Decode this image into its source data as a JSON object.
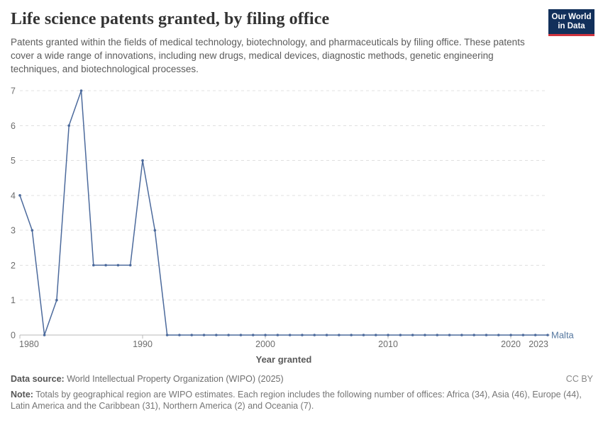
{
  "header": {
    "title": "Life science patents granted, by filing office",
    "subtitle": "Patents granted within the fields of medical technology, biotechnology, and pharmaceuticals by filing office. These patents cover a wide range of innovations, including new drugs, medical devices, diagnostic methods, genetic engineering techniques, and biotechnological processes.",
    "logo": {
      "line1": "Our World",
      "line2": "in Data"
    }
  },
  "chart_data": {
    "type": "line",
    "title": "Life science patents granted, by filing office",
    "xlabel": "Year granted",
    "ylabel": "",
    "x_range": [
      1980,
      2023
    ],
    "ylim": [
      0,
      7
    ],
    "yticks": [
      0,
      1,
      2,
      3,
      4,
      5,
      6,
      7
    ],
    "xticks": [
      1980,
      1990,
      2000,
      2010,
      2020,
      2023
    ],
    "grid": "horizontal-dashed",
    "legend_position": "end-of-line-label",
    "colors": {
      "line": "#4C6A9C",
      "gridline": "#e0e0e0",
      "axis_line": "#b8b8b8",
      "tick_text": "#6d6d6d",
      "axis_title": "#5a5a5a"
    },
    "series": [
      {
        "name": "Malta",
        "color": "#4C6A9C",
        "years": [
          1980,
          1981,
          1982,
          1983,
          1984,
          1985,
          1986,
          1987,
          1988,
          1989,
          1990,
          1991,
          1992,
          1993,
          1994,
          1995,
          1996,
          1997,
          1998,
          1999,
          2000,
          2001,
          2002,
          2003,
          2004,
          2005,
          2006,
          2007,
          2008,
          2009,
          2010,
          2011,
          2012,
          2013,
          2014,
          2015,
          2016,
          2017,
          2018,
          2019,
          2020,
          2021,
          2022,
          2023
        ],
        "values": [
          4,
          3,
          0,
          1,
          6,
          7,
          2,
          2,
          2,
          2,
          5,
          3,
          0,
          0,
          0,
          0,
          0,
          0,
          0,
          0,
          0,
          0,
          0,
          0,
          0,
          0,
          0,
          0,
          0,
          0,
          0,
          0,
          0,
          0,
          0,
          0,
          0,
          0,
          0,
          0,
          0,
          0,
          0,
          0
        ]
      }
    ]
  },
  "footer": {
    "datasource_label": "Data source:",
    "datasource": " World Intellectual Property Organization (WIPO) (2025)",
    "license": "CC BY",
    "note_label": "Note:",
    "note": " Totals by geographical region are WIPO estimates. Each region includes the following number of offices: Africa (34), Asia (46), Europe (44), Latin America and the Caribbean (31), Northern America (2) and Oceania (7)."
  }
}
